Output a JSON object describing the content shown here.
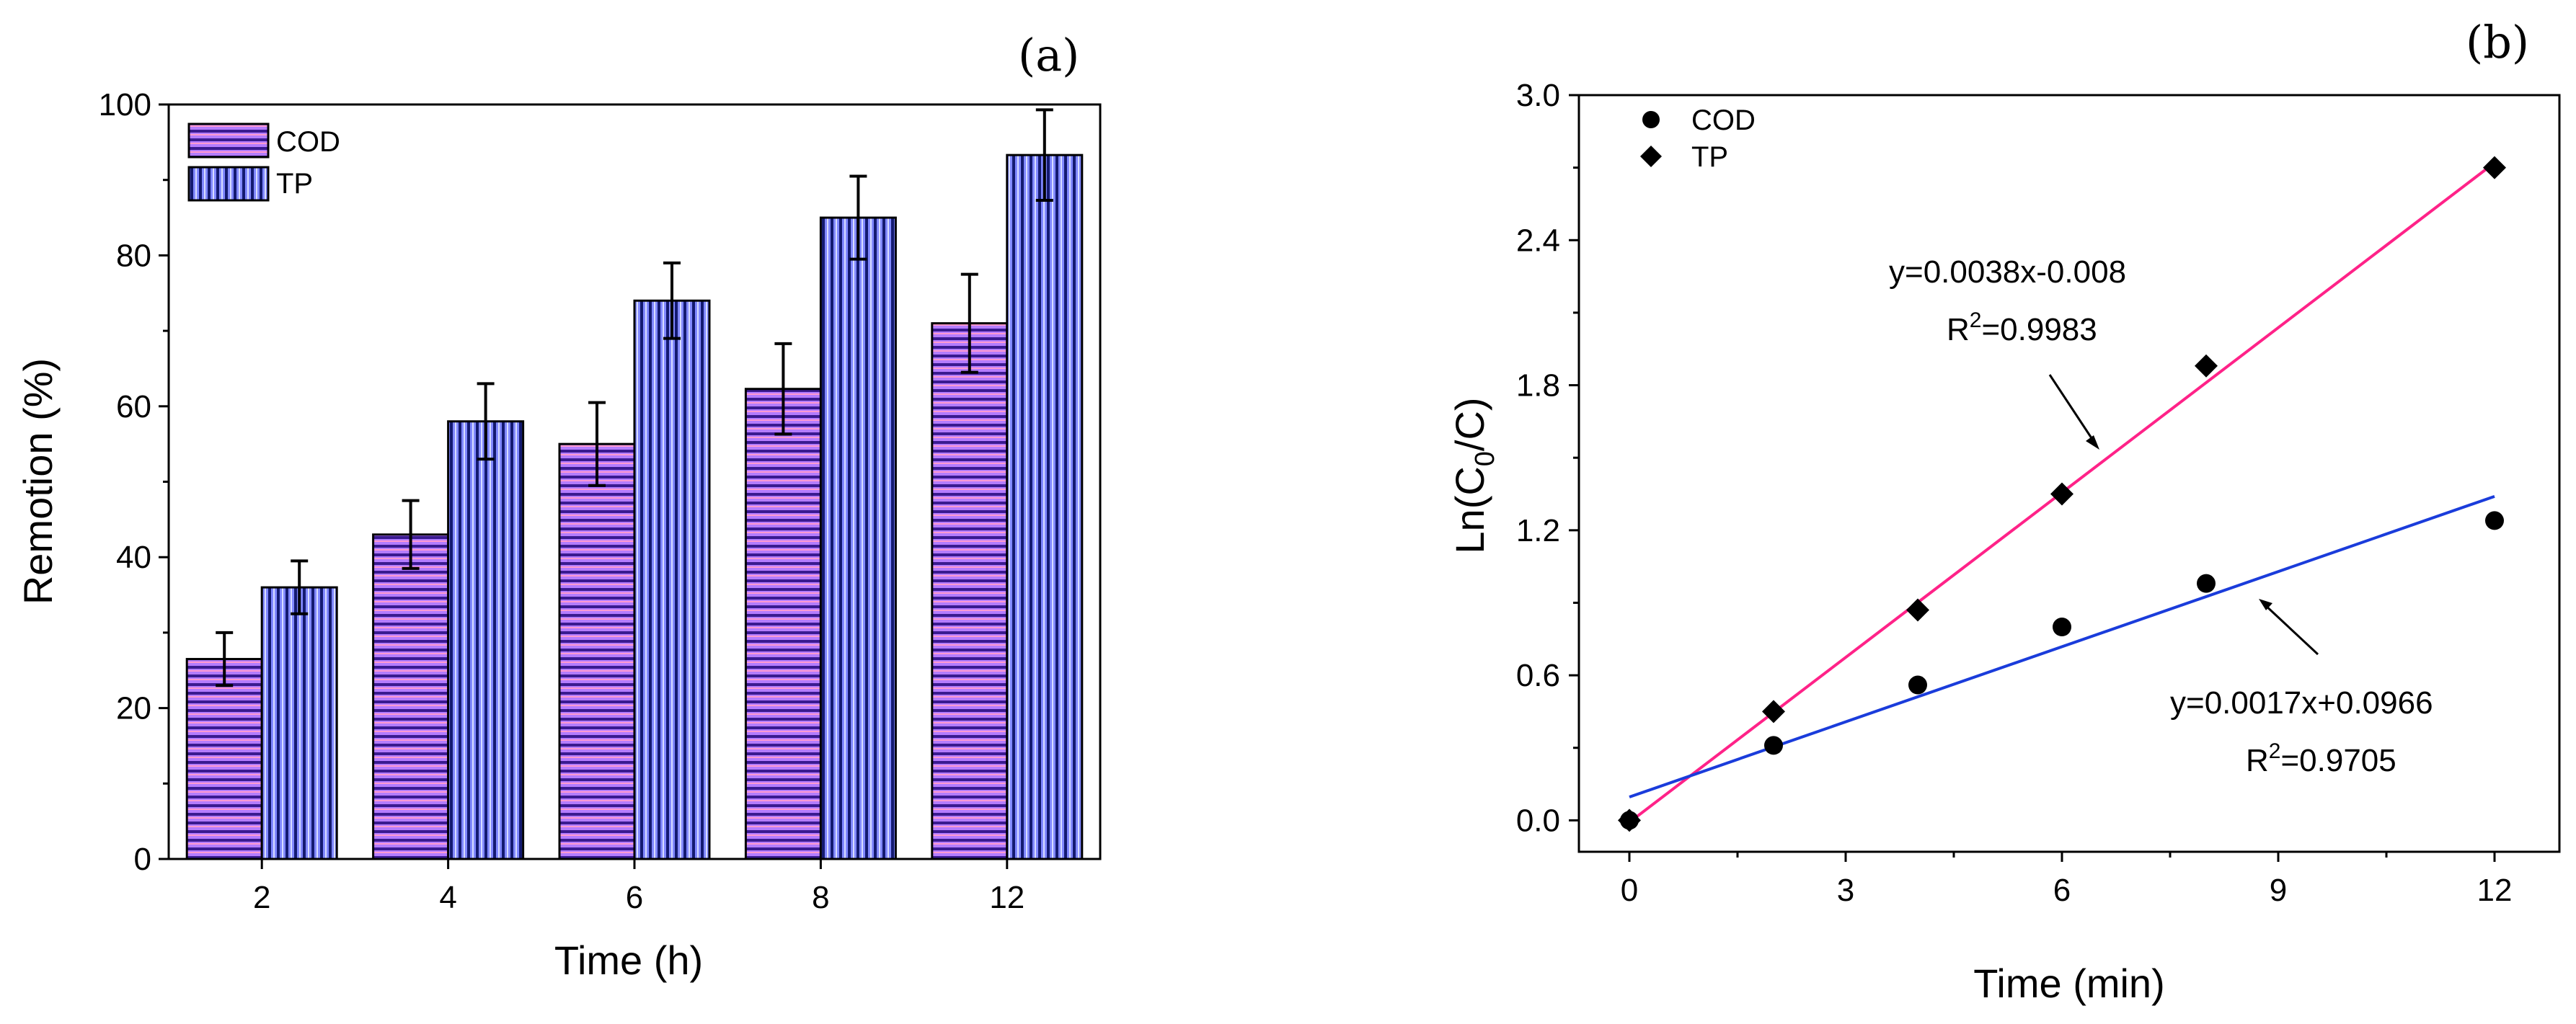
{
  "chart_data": [
    {
      "type": "bar",
      "panel_label": "(a)",
      "title": "",
      "xlabel": "Time (h)",
      "ylabel": "Remotion (%)",
      "ylim": [
        0,
        100
      ],
      "yticks": [
        "0",
        "20",
        "40",
        "60",
        "80",
        "100"
      ],
      "categories": [
        "2",
        "4",
        "6",
        "8",
        "12"
      ],
      "series": [
        {
          "name": "COD",
          "values": [
            26.5,
            43,
            55,
            62.3,
            71
          ],
          "errors": [
            3.5,
            4.5,
            5.5,
            6,
            6.5
          ],
          "color": "#b47cff",
          "pattern": "horizontal"
        },
        {
          "name": "TP",
          "values": [
            36,
            58,
            74,
            85,
            93.3
          ],
          "errors": [
            3.5,
            5,
            5,
            5.5,
            6
          ],
          "color": "#7b85ff",
          "pattern": "vertical"
        }
      ],
      "legend_position": "top-left"
    },
    {
      "type": "scatter",
      "panel_label": "(b)",
      "title": "",
      "xlabel": "Time (min)",
      "ylabel_base": "Ln(C",
      "ylabel_sub": "0",
      "ylabel_tail": "/C)",
      "xlim": [
        -0.7,
        12.9
      ],
      "ylim": [
        -0.13,
        3.0
      ],
      "xticks": [
        "0",
        "3",
        "6",
        "9",
        "12"
      ],
      "yticks": [
        "0.0",
        "0.6",
        "1.2",
        "1.8",
        "2.4",
        "3.0"
      ],
      "series": [
        {
          "name": "COD",
          "marker": "circle",
          "x": [
            0,
            2,
            4,
            6,
            8,
            12
          ],
          "y": [
            0.0,
            0.31,
            0.56,
            0.8,
            0.98,
            1.24
          ]
        },
        {
          "name": "TP",
          "marker": "diamond",
          "x": [
            0,
            2,
            4,
            6,
            8,
            12
          ],
          "y": [
            0.0,
            0.45,
            0.87,
            1.35,
            1.88,
            2.7
          ]
        }
      ],
      "fits": [
        {
          "name": "TP fit",
          "color": "#ff2288",
          "x": [
            0,
            12
          ],
          "y": [
            -0.008,
            2.72
          ],
          "equation": "y=0.0038x-0.008",
          "r2_base": "R",
          "r2_sup": "2",
          "r2_value": "=0.9983"
        },
        {
          "name": "COD fit",
          "color": "#1a3cdb",
          "x": [
            0,
            12
          ],
          "y": [
            0.0966,
            1.34
          ],
          "equation": "y=0.0017x+0.0966",
          "r2_base": "R",
          "r2_sup": "2",
          "r2_value": "=0.9705"
        }
      ],
      "legend_position": "top-left"
    }
  ]
}
